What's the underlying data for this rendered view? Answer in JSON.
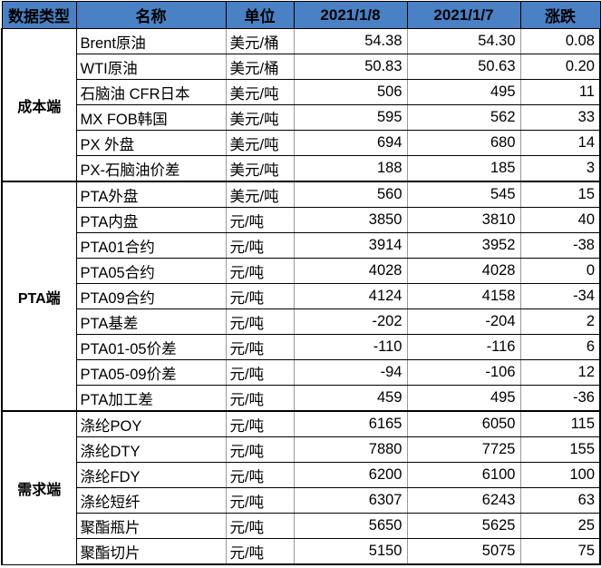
{
  "header": {
    "category": "数据类型",
    "name": "名称",
    "unit": "单位",
    "date1": "2021/1/8",
    "date2": "2021/1/7",
    "change": "涨跌"
  },
  "groups": [
    {
      "label": "成本端",
      "rows": [
        {
          "name": "Brent原油",
          "unit": "美元/桶",
          "v1": "54.38",
          "v2": "54.30",
          "chg": "0.08"
        },
        {
          "name": "WTI原油",
          "unit": "美元/桶",
          "v1": "50.83",
          "v2": "50.63",
          "chg": "0.20"
        },
        {
          "name": "石脑油 CFR日本",
          "unit": "美元/吨",
          "v1": "506",
          "v2": "495",
          "chg": "11"
        },
        {
          "name": "MX FOB韩国",
          "unit": "美元/吨",
          "v1": "595",
          "v2": "562",
          "chg": "33"
        },
        {
          "name": "PX 外盘",
          "unit": "美元/吨",
          "v1": "694",
          "v2": "680",
          "chg": "14"
        },
        {
          "name": "PX-石脑油价差",
          "unit": "美元/吨",
          "v1": "188",
          "v2": "185",
          "chg": "3"
        }
      ]
    },
    {
      "label": "PTA端",
      "rows": [
        {
          "name": "PTA外盘",
          "unit": "美元/吨",
          "v1": "560",
          "v2": "545",
          "chg": "15"
        },
        {
          "name": "PTA内盘",
          "unit": "元/吨",
          "v1": "3850",
          "v2": "3810",
          "chg": "40"
        },
        {
          "name": "PTA01合约",
          "unit": "元/吨",
          "v1": "3914",
          "v2": "3952",
          "chg": "-38"
        },
        {
          "name": "PTA05合约",
          "unit": "元/吨",
          "v1": "4028",
          "v2": "4028",
          "chg": "0"
        },
        {
          "name": "PTA09合约",
          "unit": "元/吨",
          "v1": "4124",
          "v2": "4158",
          "chg": "-34"
        },
        {
          "name": "PTA基差",
          "unit": "元/吨",
          "v1": "-202",
          "v2": "-204",
          "chg": "2"
        },
        {
          "name": "PTA01-05价差",
          "unit": "元/吨",
          "v1": "-110",
          "v2": "-116",
          "chg": "6"
        },
        {
          "name": "PTA05-09价差",
          "unit": "元/吨",
          "v1": "-94",
          "v2": "-106",
          "chg": "12"
        },
        {
          "name": "PTA加工差",
          "unit": "元/吨",
          "v1": "459",
          "v2": "495",
          "chg": "-36"
        }
      ]
    },
    {
      "label": "需求端",
      "rows": [
        {
          "name": "涤纶POY",
          "unit": "元/吨",
          "v1": "6165",
          "v2": "6050",
          "chg": "115"
        },
        {
          "name": "涤纶DTY",
          "unit": "元/吨",
          "v1": "7880",
          "v2": "7725",
          "chg": "155"
        },
        {
          "name": "涤纶FDY",
          "unit": "元/吨",
          "v1": "6200",
          "v2": "6100",
          "chg": "100"
        },
        {
          "name": "涤纶短纤",
          "unit": "元/吨",
          "v1": "6307",
          "v2": "6243",
          "chg": "63"
        },
        {
          "name": "聚酯瓶片",
          "unit": "元/吨",
          "v1": "5650",
          "v2": "5625",
          "chg": "25"
        },
        {
          "name": "聚酯切片",
          "unit": "元/吨",
          "v1": "5150",
          "v2": "5075",
          "chg": "75"
        }
      ]
    }
  ]
}
